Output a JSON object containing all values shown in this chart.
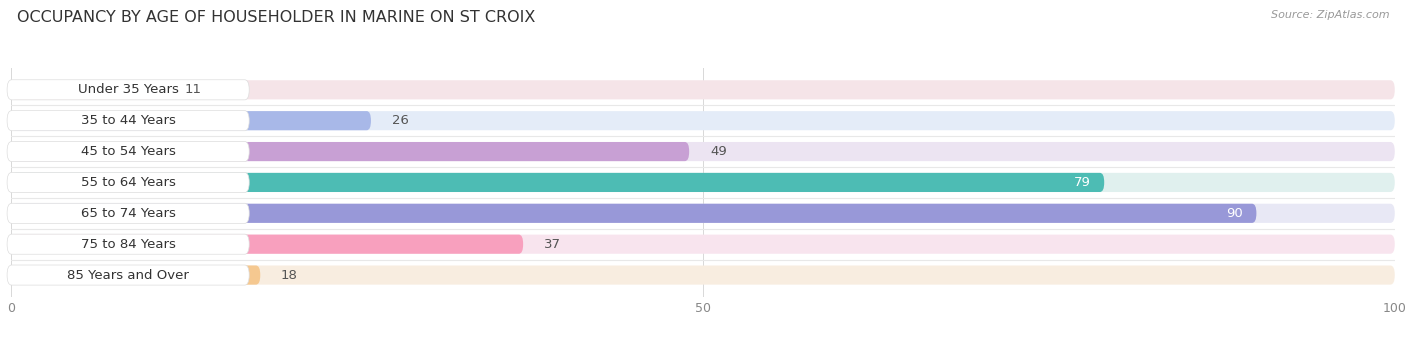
{
  "title": "OCCUPANCY BY AGE OF HOUSEHOLDER IN MARINE ON ST CROIX",
  "source": "Source: ZipAtlas.com",
  "categories": [
    "Under 35 Years",
    "35 to 44 Years",
    "45 to 54 Years",
    "55 to 64 Years",
    "65 to 74 Years",
    "75 to 84 Years",
    "85 Years and Over"
  ],
  "values": [
    11,
    26,
    49,
    79,
    90,
    37,
    18
  ],
  "bar_colors": [
    "#f2a0ab",
    "#a8b8e8",
    "#c8a0d4",
    "#4dbcb4",
    "#9898d8",
    "#f8a0be",
    "#f5c890"
  ],
  "bar_bg_colors": [
    "#f5e4e8",
    "#e4ecf8",
    "#ece4f2",
    "#e0f0ee",
    "#e8e8f5",
    "#f8e4ee",
    "#f8ede0"
  ],
  "row_separator_color": "#e8e8e8",
  "xlim": [
    0,
    100
  ],
  "xticks": [
    0,
    50,
    100
  ],
  "title_fontsize": 11.5,
  "label_fontsize": 9.5,
  "value_fontsize": 9.5,
  "bg_color": "#ffffff",
  "plot_bg_color": "#ffffff",
  "title_color": "#333333",
  "source_color": "#999999",
  "label_color": "#333333",
  "value_color_inside": "#ffffff",
  "value_color_outside": "#555555",
  "value_inside_threshold": 70
}
